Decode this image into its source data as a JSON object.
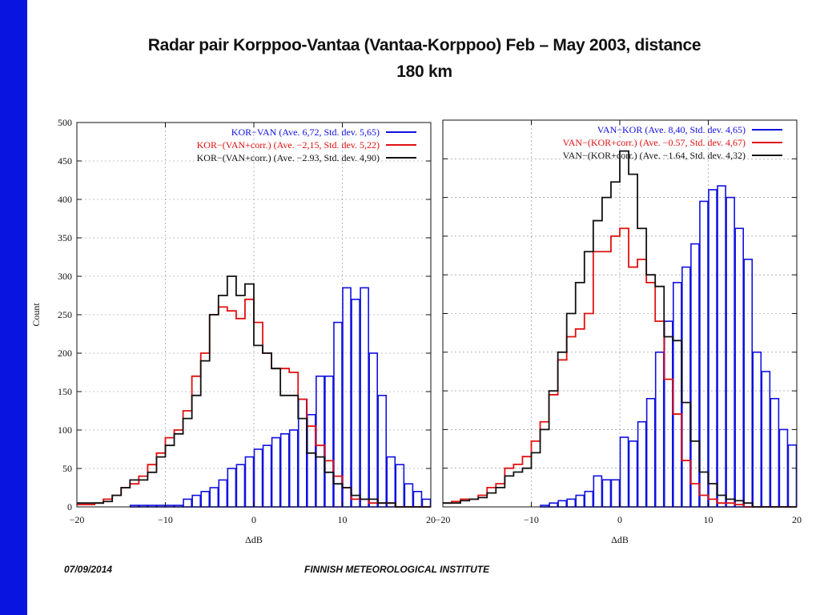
{
  "slide": {
    "title_line1": "Radar pair Korppoo-Vantaa (Vantaa-Korppoo) Feb – May 2003,  distance",
    "title_line2": "180 km",
    "date": "07/09/2014",
    "institute": "FINNISH METEOROLOGICAL INSTITUTE",
    "accent_color": "#0a14e0"
  },
  "chart_data": [
    {
      "type": "histogram",
      "xlabel": "ΔdB",
      "ylabel": "Count",
      "xlim": [
        -20,
        20
      ],
      "ylim": [
        0,
        500
      ],
      "xticks": [
        -20,
        -10,
        0,
        10,
        20
      ],
      "yticks": [
        0,
        50,
        100,
        150,
        200,
        250,
        300,
        350,
        400,
        450,
        500
      ],
      "grid": true,
      "legend_position": "top-right",
      "bin_width": 1,
      "bin_start": -20,
      "series": [
        {
          "name": "KOR−VAN (Ave. 6,72, Std. dev. 5,65)",
          "color": "#1010e0",
          "style": "bars",
          "values": [
            0,
            0,
            0,
            0,
            0,
            0,
            2,
            2,
            2,
            2,
            2,
            2,
            10,
            15,
            20,
            25,
            35,
            50,
            55,
            65,
            75,
            80,
            90,
            95,
            100,
            140,
            120,
            170,
            170,
            240,
            285,
            270,
            285,
            200,
            145,
            65,
            55,
            30,
            20,
            10
          ]
        },
        {
          "name": "KOR−(VAN+corr.) (Ave. −2,15, Std. dev. 5,22)",
          "color": "#e01010",
          "style": "step",
          "values": [
            3,
            3,
            5,
            10,
            15,
            25,
            30,
            40,
            55,
            70,
            90,
            100,
            125,
            170,
            200,
            250,
            260,
            255,
            245,
            270,
            240,
            200,
            180,
            180,
            175,
            140,
            105,
            80,
            60,
            40,
            25,
            10,
            10,
            5,
            5,
            5,
            0,
            0,
            0,
            0
          ]
        },
        {
          "name": "KOR−(VAN+corr.) (Ave. −2.93, Std. dev. 4,90)",
          "color": "#111111",
          "style": "step",
          "values": [
            5,
            5,
            5,
            7,
            15,
            25,
            35,
            35,
            45,
            65,
            80,
            95,
            115,
            145,
            190,
            250,
            275,
            300,
            275,
            290,
            210,
            200,
            180,
            145,
            145,
            115,
            70,
            65,
            45,
            30,
            25,
            15,
            10,
            10,
            5,
            5,
            0,
            0,
            0,
            0
          ]
        }
      ]
    },
    {
      "type": "histogram",
      "xlabel": "ΔdB",
      "ylabel": "",
      "xlim": [
        -20,
        20
      ],
      "ylim": [
        0,
        500
      ],
      "xticks": [
        -20,
        -10,
        0,
        10,
        20
      ],
      "yticks": [
        0,
        50,
        100,
        150,
        200,
        250,
        300,
        350,
        400,
        450,
        500
      ],
      "grid": true,
      "legend_position": "top-right",
      "bin_width": 1,
      "bin_start": -20,
      "series": [
        {
          "name": "VAN−KOR (Ave. 8,40, Std. dev. 4,65)",
          "color": "#1010e0",
          "style": "bars",
          "values": [
            0,
            0,
            0,
            0,
            0,
            0,
            0,
            0,
            0,
            0,
            0,
            2,
            5,
            8,
            10,
            15,
            20,
            40,
            35,
            35,
            90,
            85,
            110,
            140,
            200,
            240,
            290,
            310,
            340,
            395,
            410,
            415,
            400,
            360,
            320,
            200,
            175,
            140,
            100,
            80
          ]
        },
        {
          "name": "VAN−(KOR+corr.) (Ave. −0.57, Std. dev. 4,67)",
          "color": "#e01010",
          "style": "step",
          "values": [
            5,
            7,
            10,
            10,
            15,
            25,
            30,
            50,
            55,
            65,
            85,
            110,
            145,
            190,
            220,
            230,
            250,
            330,
            330,
            350,
            360,
            310,
            320,
            290,
            240,
            165,
            120,
            60,
            30,
            15,
            10,
            5,
            5,
            3,
            0,
            0,
            0,
            0,
            0,
            0
          ]
        },
        {
          "name": "VAN−(KOR+corr.) (Ave. −1.64, Std. dev. 4,32)",
          "color": "#111111",
          "style": "step",
          "values": [
            5,
            5,
            8,
            10,
            12,
            18,
            25,
            40,
            45,
            50,
            70,
            100,
            150,
            200,
            250,
            290,
            330,
            370,
            400,
            420,
            460,
            430,
            360,
            300,
            285,
            220,
            215,
            135,
            85,
            45,
            30,
            15,
            10,
            8,
            5,
            0,
            0,
            0,
            0,
            0
          ]
        }
      ]
    }
  ]
}
